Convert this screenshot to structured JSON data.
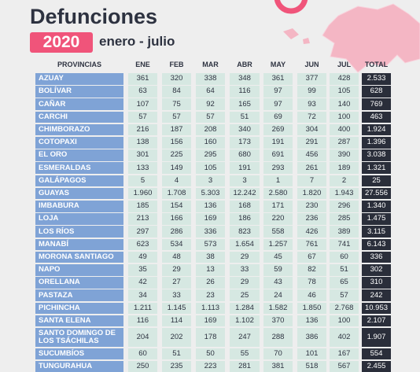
{
  "header": {
    "title": "Defunciones",
    "year": "2020",
    "period": "enero - julio"
  },
  "table": {
    "columns": [
      "PROVINCIAS",
      "ENE",
      "FEB",
      "MAR",
      "ABR",
      "MAY",
      "JUN",
      "JUL",
      "TOTAL"
    ],
    "rows": [
      [
        "AZUAY",
        "361",
        "320",
        "338",
        "348",
        "361",
        "377",
        "428",
        "2.533"
      ],
      [
        "BOLÍVAR",
        "63",
        "84",
        "64",
        "116",
        "97",
        "99",
        "105",
        "628"
      ],
      [
        "CAÑAR",
        "107",
        "75",
        "92",
        "165",
        "97",
        "93",
        "140",
        "769"
      ],
      [
        "CARCHI",
        "57",
        "57",
        "57",
        "51",
        "69",
        "72",
        "100",
        "463"
      ],
      [
        "CHIMBORAZO",
        "216",
        "187",
        "208",
        "340",
        "269",
        "304",
        "400",
        "1.924"
      ],
      [
        "COTOPAXI",
        "138",
        "156",
        "160",
        "173",
        "191",
        "291",
        "287",
        "1.396"
      ],
      [
        "EL ORO",
        "301",
        "225",
        "295",
        "680",
        "691",
        "456",
        "390",
        "3.038"
      ],
      [
        "ESMERALDAS",
        "133",
        "149",
        "105",
        "191",
        "293",
        "261",
        "189",
        "1.321"
      ],
      [
        "GALÁPAGOS",
        "5",
        "4",
        "3",
        "3",
        "1",
        "7",
        "2",
        "25"
      ],
      [
        "GUAYAS",
        "1.960",
        "1.708",
        "5.303",
        "12.242",
        "2.580",
        "1.820",
        "1.943",
        "27.556"
      ],
      [
        "IMBABURA",
        "185",
        "154",
        "136",
        "168",
        "171",
        "230",
        "296",
        "1.340"
      ],
      [
        "LOJA",
        "213",
        "166",
        "169",
        "186",
        "220",
        "236",
        "285",
        "1.475"
      ],
      [
        "LOS RÍOS",
        "297",
        "286",
        "336",
        "823",
        "558",
        "426",
        "389",
        "3.115"
      ],
      [
        "MANABÍ",
        "623",
        "534",
        "573",
        "1.654",
        "1.257",
        "761",
        "741",
        "6.143"
      ],
      [
        "MORONA SANTIAGO",
        "49",
        "48",
        "38",
        "29",
        "45",
        "67",
        "60",
        "336"
      ],
      [
        "NAPO",
        "35",
        "29",
        "13",
        "33",
        "59",
        "82",
        "51",
        "302"
      ],
      [
        "ORELLANA",
        "42",
        "27",
        "26",
        "29",
        "43",
        "78",
        "65",
        "310"
      ],
      [
        "PASTAZA",
        "34",
        "33",
        "23",
        "25",
        "24",
        "46",
        "57",
        "242"
      ],
      [
        "PICHINCHA",
        "1.211",
        "1.145",
        "1.113",
        "1.284",
        "1.582",
        "1.850",
        "2.768",
        "10.953"
      ],
      [
        "SANTA ELENA",
        "116",
        "114",
        "169",
        "1.102",
        "370",
        "136",
        "100",
        "2.107"
      ],
      [
        "SANTO DOMINGO DE LOS TSÁCHILAS",
        "204",
        "202",
        "178",
        "247",
        "288",
        "386",
        "402",
        "1.907"
      ],
      [
        "SUCUMBÍOS",
        "60",
        "51",
        "50",
        "55",
        "70",
        "101",
        "167",
        "554"
      ],
      [
        "TUNGURAHUA",
        "250",
        "235",
        "223",
        "281",
        "381",
        "518",
        "567",
        "2.455"
      ]
    ]
  }
}
